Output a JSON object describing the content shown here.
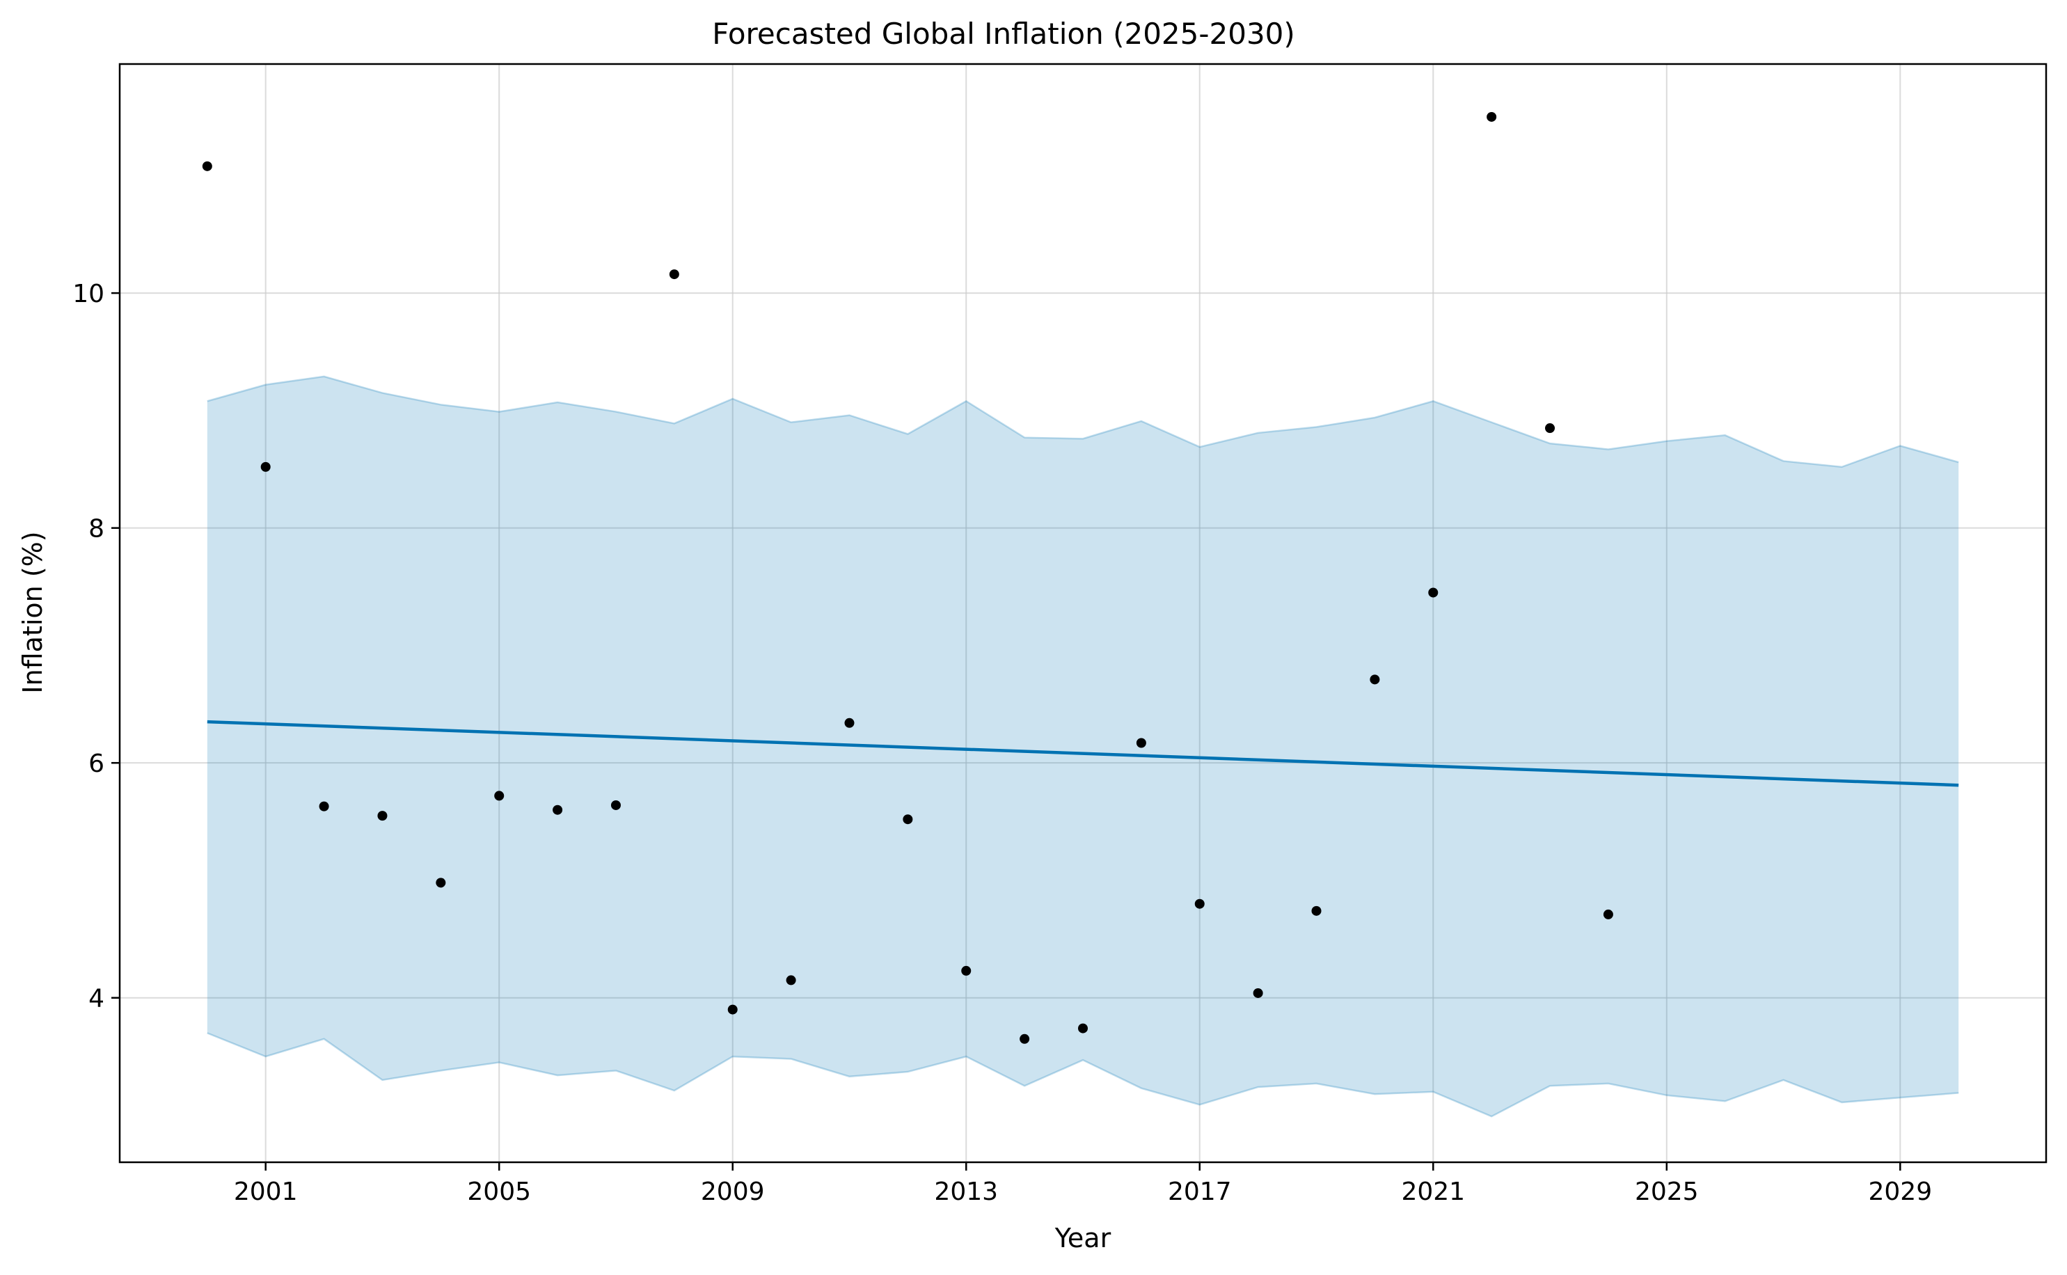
{
  "chart_data": {
    "type": "line",
    "title": "Forecasted Global Inflation (2025-2030)",
    "xlabel": "Year",
    "ylabel": "Inflation (%)",
    "xlim": [
      1998.5,
      2031.5
    ],
    "ylim": [
      2.6,
      11.95
    ],
    "x_ticks": [
      2001,
      2005,
      2009,
      2013,
      2017,
      2021,
      2025,
      2029
    ],
    "y_ticks": [
      4,
      6,
      8,
      10
    ],
    "grid": true,
    "legend": "none",
    "colors": {
      "trend": "#0072B2",
      "band_fill": "#0072B2",
      "band_edge": "#0072B2",
      "points": "#000000",
      "grid": "#cccccc"
    },
    "observed": {
      "x": [
        2000,
        2001,
        2002,
        2003,
        2004,
        2005,
        2006,
        2007,
        2008,
        2009,
        2010,
        2011,
        2012,
        2013,
        2014,
        2015,
        2016,
        2017,
        2018,
        2019,
        2020,
        2021,
        2022,
        2023,
        2024
      ],
      "y": [
        11.08,
        8.52,
        5.63,
        5.55,
        4.98,
        5.72,
        5.6,
        5.64,
        10.16,
        3.9,
        4.15,
        6.34,
        5.52,
        4.23,
        3.65,
        3.74,
        6.17,
        4.8,
        4.04,
        4.74,
        6.71,
        7.45,
        11.5,
        8.85,
        4.71
      ]
    },
    "forecast": {
      "x": [
        2000,
        2030
      ],
      "yhat": [
        6.35,
        5.81
      ]
    },
    "uncertainty_band": {
      "x": [
        2000,
        2001,
        2002,
        2003,
        2004,
        2005,
        2006,
        2007,
        2008,
        2009,
        2010,
        2011,
        2012,
        2013,
        2014,
        2015,
        2016,
        2017,
        2018,
        2019,
        2020,
        2021,
        2022,
        2023,
        2024,
        2025,
        2026,
        2027,
        2028,
        2029,
        2030
      ],
      "upper": [
        9.08,
        9.22,
        9.29,
        9.15,
        9.05,
        8.99,
        9.07,
        8.99,
        8.89,
        9.1,
        8.9,
        8.96,
        8.8,
        9.08,
        8.77,
        8.76,
        8.91,
        8.69,
        8.81,
        8.86,
        8.94,
        9.08,
        8.9,
        8.72,
        8.67,
        8.74,
        8.79,
        8.57,
        8.52,
        8.7,
        8.56
      ],
      "lower": [
        3.7,
        3.5,
        3.65,
        3.3,
        3.38,
        3.45,
        3.34,
        3.38,
        3.21,
        3.5,
        3.48,
        3.33,
        3.37,
        3.5,
        3.25,
        3.47,
        3.23,
        3.09,
        3.24,
        3.27,
        3.18,
        3.2,
        2.99,
        3.25,
        3.27,
        3.17,
        3.12,
        3.3,
        3.11,
        3.15,
        3.19
      ]
    }
  }
}
